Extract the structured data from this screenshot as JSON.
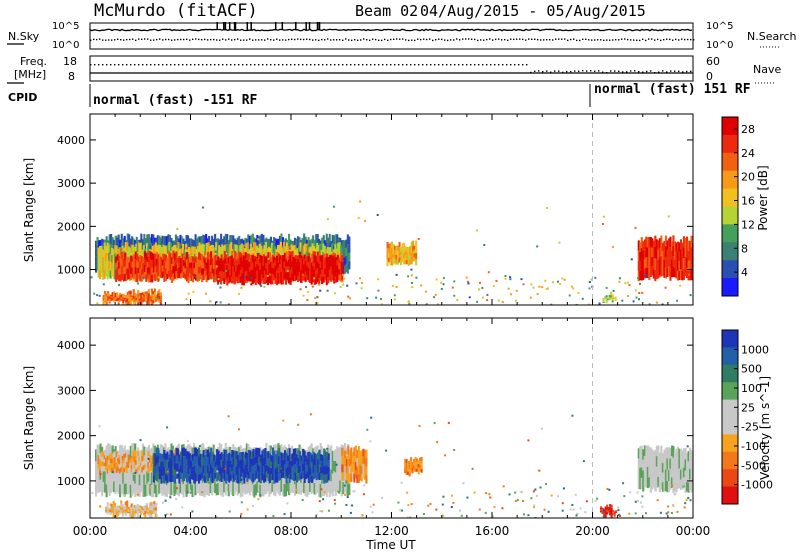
{
  "header": {
    "site": "McMurdo (fitACF)",
    "beam": "Beam 02",
    "dates": "04/Aug/2015 - 05/Aug/2015"
  },
  "status_panels": {
    "nsky_label": "N.Sky",
    "nsky_ticks": [
      "10^5",
      "10^0"
    ],
    "nsearch_label": "N.Search",
    "nsearch_ticks": [
      "10^5",
      "10^0"
    ],
    "freq_label_1": "Freq.",
    "freq_label_2": "[MHz]",
    "freq_ticks": [
      "18",
      "8"
    ],
    "nave_label": "Nave",
    "nave_ticks": [
      "60",
      "0"
    ],
    "cpid_label": "CPID",
    "cpid_segments": [
      {
        "text": "normal (fast) -151 RF",
        "start_hour": 0
      },
      {
        "text": "normal (fast) 151 RF",
        "start_hour": 20
      }
    ]
  },
  "colors": {
    "power_scale": [
      "#1a1aff",
      "#2b4fb0",
      "#3c7f73",
      "#44a05a",
      "#b5d334",
      "#f0c020",
      "#f79a18",
      "#f26012",
      "#ee2a0e",
      "#e00000"
    ],
    "velocity_scale": [
      "#1f35b8",
      "#2460a8",
      "#2e7d63",
      "#5aa35a",
      "#c8c8c8",
      "#c8c8c8",
      "#f7a21e",
      "#f2781a",
      "#ec4815",
      "#e01010"
    ]
  },
  "chart_data": [
    {
      "type": "heatmap",
      "name": "power",
      "ylabel": "Slant Range [km]",
      "xlabel": "",
      "xlim": [
        0,
        24
      ],
      "ylim": [
        180,
        4600
      ],
      "y_ticks": [
        "1000",
        "2000",
        "3000",
        "4000"
      ],
      "x_ticks": [
        "00:00",
        "04:00",
        "08:00",
        "12:00",
        "16:00",
        "20:00",
        "00:00"
      ],
      "colorbar": {
        "label": "Power [dB]",
        "ticks": [
          "4",
          "8",
          "12",
          "16",
          "20",
          "24",
          "28"
        ],
        "range": [
          0,
          30
        ]
      },
      "regions": [
        {
          "t0": 0.2,
          "t1": 10.3,
          "r0": 950,
          "r1": 1750,
          "value": 6
        },
        {
          "t0": 0.3,
          "t1": 10.0,
          "r0": 800,
          "r1": 1550,
          "value": 15
        },
        {
          "t0": 1.0,
          "t1": 10.0,
          "r0": 750,
          "r1": 1350,
          "value": 25
        },
        {
          "t0": 5.0,
          "t1": 9.8,
          "r0": 700,
          "r1": 1250,
          "value": 28
        },
        {
          "t0": 0.5,
          "t1": 2.8,
          "r0": 220,
          "r1": 480,
          "value": 22
        },
        {
          "t0": 11.8,
          "t1": 13.0,
          "r0": 1150,
          "r1": 1600,
          "value": 18
        },
        {
          "t0": 21.8,
          "t1": 24.0,
          "r0": 800,
          "r1": 1700,
          "value": 26
        },
        {
          "t0": 20.4,
          "t1": 20.9,
          "r0": 260,
          "r1": 420,
          "value": 14
        }
      ]
    },
    {
      "type": "heatmap",
      "name": "velocity",
      "ylabel": "Slant Range [km]",
      "xlabel": "Time UT",
      "xlim": [
        0,
        24
      ],
      "ylim": [
        180,
        4600
      ],
      "y_ticks": [
        "1000",
        "2000",
        "3000",
        "4000"
      ],
      "x_ticks": [
        "00:00",
        "04:00",
        "08:00",
        "12:00",
        "16:00",
        "20:00",
        "00:00"
      ],
      "colorbar": {
        "label": "Velocity [m s^-1]",
        "ticks": [
          "1000",
          "500",
          "100",
          "25",
          "-25",
          "-100",
          "-500",
          "-1000"
        ],
        "range": [
          -1000,
          1000
        ]
      },
      "regions": [
        {
          "t0": 0.2,
          "t1": 10.3,
          "r0": 700,
          "r1": 1750,
          "value": 80
        },
        {
          "t0": 0.3,
          "t1": 4.0,
          "r0": 1200,
          "r1": 1600,
          "value": -300
        },
        {
          "t0": 2.5,
          "t1": 9.5,
          "r0": 1000,
          "r1": 1650,
          "value": 800
        },
        {
          "t0": 10.0,
          "t1": 11.0,
          "r0": 1000,
          "r1": 1700,
          "value": -400
        },
        {
          "t0": 0.6,
          "t1": 2.6,
          "r0": 220,
          "r1": 480,
          "value": -200
        },
        {
          "t0": 12.5,
          "t1": 13.2,
          "r0": 1150,
          "r1": 1500,
          "value": -450
        },
        {
          "t0": 21.8,
          "t1": 24.0,
          "r0": 800,
          "r1": 1700,
          "value": 60
        },
        {
          "t0": 20.3,
          "t1": 20.9,
          "r0": 250,
          "r1": 400,
          "value": -900
        }
      ]
    }
  ]
}
